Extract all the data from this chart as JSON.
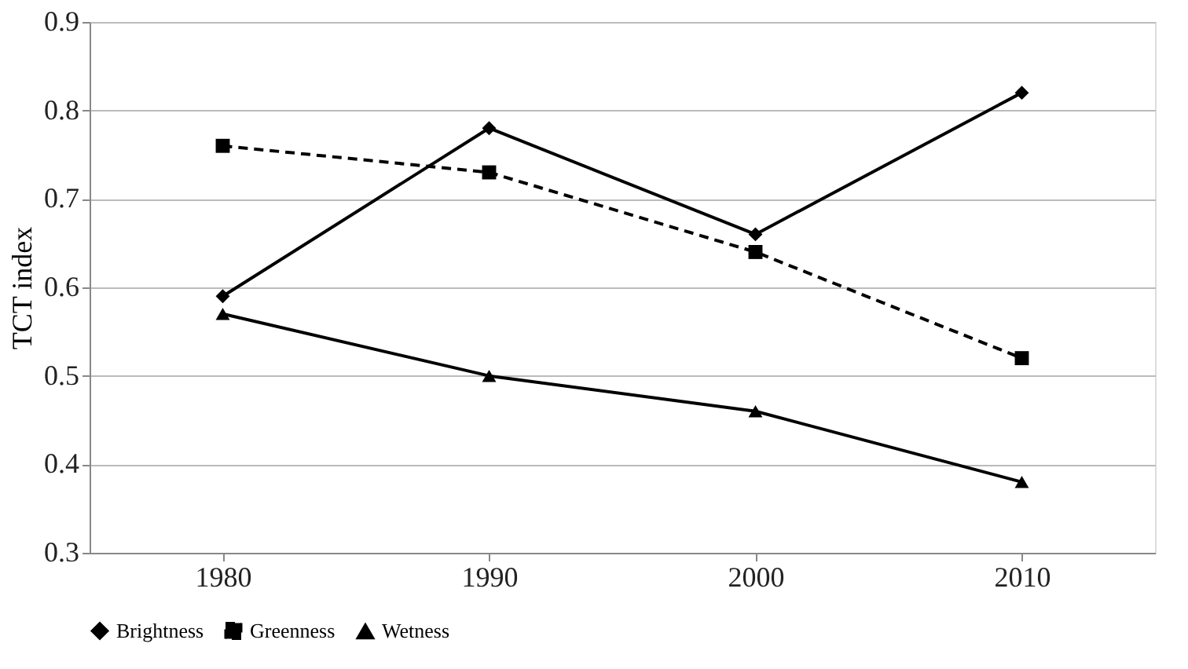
{
  "chart_data": {
    "type": "line",
    "ylabel": "TCT index",
    "categories": [
      "1980",
      "1990",
      "2000",
      "2010"
    ],
    "series": [
      {
        "name": "Brightness",
        "color": "#000000",
        "marker": "diamond",
        "line_style": "solid",
        "values": [
          0.59,
          0.78,
          0.66,
          0.82
        ]
      },
      {
        "name": "Greenness",
        "color": "#000000",
        "marker": "square",
        "line_style": "dashed",
        "values": [
          0.76,
          0.73,
          0.64,
          0.52
        ]
      },
      {
        "name": "Wetness",
        "color": "#000000",
        "marker": "triangle",
        "line_style": "solid",
        "values": [
          0.57,
          0.5,
          0.46,
          0.38
        ]
      }
    ],
    "ylim": [
      0.3,
      0.9
    ],
    "yticks": [
      0.3,
      0.4,
      0.5,
      0.6,
      0.7,
      0.8,
      0.9
    ],
    "grid": "y",
    "legend": "bottom"
  }
}
